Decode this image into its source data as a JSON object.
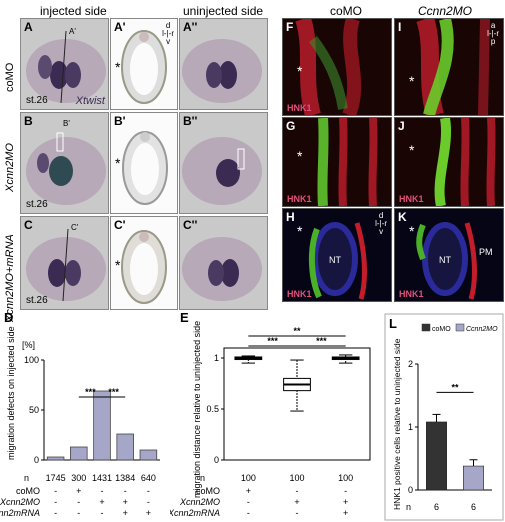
{
  "headers": {
    "injected": "injected side",
    "uninjected": "uninjected side",
    "coMO": "coMO",
    "ccnn2MO": "Ccnn2MO"
  },
  "row_labels": [
    "coMO",
    "Xcnn2MO",
    "Xcnn2MO+mRNA"
  ],
  "panels": {
    "A": "A",
    "A1": "A'",
    "A2": "A''",
    "B": "B",
    "B1": "B'",
    "B2": "B''",
    "C": "C",
    "C1": "C'",
    "C2": "C''",
    "F": "F",
    "G": "G",
    "H": "H",
    "I": "I",
    "J": "J",
    "K": "K"
  },
  "marks": {
    "A1": "A'",
    "B1": "B'",
    "C1": "C'"
  },
  "stage": "st.26",
  "xtwist": "Xtwist",
  "asterisk": "*",
  "hnk1": "HNK1",
  "nt": "NT",
  "pm": "PM",
  "orient_apl": [
    "a",
    "l",
    "r",
    "p"
  ],
  "orient_dlv": [
    "d",
    "l",
    "r",
    "v"
  ],
  "chart_labels": {
    "D": "D",
    "E": "E",
    "L": "L",
    "n": "n"
  },
  "row_names": {
    "coMO": "coMO",
    "xcnn2mo": "Xcnn2MO",
    "xcnn2mrna": "Xcnn2mRNA"
  },
  "chart_data": [
    {
      "type": "bar",
      "panel": "D",
      "title": "",
      "ylabel": "migration defects on injected side",
      "yunit": "[%]",
      "ylim": [
        0,
        100
      ],
      "yticks": [
        0,
        50,
        100
      ],
      "values": [
        3,
        13,
        69,
        26,
        10
      ],
      "n": [
        "1745",
        "300",
        "1431",
        "1384",
        "640"
      ],
      "conditions": {
        "coMO": [
          "-",
          "+",
          "-",
          "-",
          "-"
        ],
        "Xcnn2MO": [
          "-",
          "-",
          "+",
          "+",
          "-"
        ],
        "Xcnn2mRNA": [
          "-",
          "-",
          "-",
          "+",
          "+"
        ]
      },
      "significance": [
        {
          "pair": [
            1,
            2
          ],
          "label": "***"
        },
        {
          "pair": [
            2,
            3
          ],
          "label": "***"
        }
      ]
    },
    {
      "type": "box",
      "panel": "E",
      "ylabel": "migration distance relative to uninjected side",
      "ylim": [
        0,
        1
      ],
      "yticks": [
        "0",
        "0.5",
        "1"
      ],
      "boxes": [
        {
          "q1": 0.985,
          "median": 1.0,
          "q3": 1.01,
          "min": 0.95,
          "max": 1.02
        },
        {
          "q1": 0.68,
          "median": 0.74,
          "q3": 0.8,
          "min": 0.48,
          "max": 0.98
        },
        {
          "q1": 0.985,
          "median": 1.0,
          "q3": 1.01,
          "min": 0.95,
          "max": 1.03
        }
      ],
      "n": [
        "100",
        "100",
        "100"
      ],
      "conditions": {
        "coMO": [
          "+",
          "-",
          "-"
        ],
        "Xcnn2MO": [
          "-",
          "+",
          "+"
        ],
        "Xcnn2mRNA": [
          "-",
          "-",
          "+"
        ]
      },
      "significance": [
        {
          "pair": [
            0,
            1
          ],
          "label": "***"
        },
        {
          "pair": [
            1,
            2
          ],
          "label": "***"
        },
        {
          "pair": [
            0,
            2
          ],
          "label": "**"
        }
      ]
    },
    {
      "type": "bar",
      "panel": "L",
      "ylabel": "HNK1 positive cells relative to uninjected side",
      "ylim": [
        0,
        2
      ],
      "yticks": [
        "0",
        "1",
        "2"
      ],
      "series": [
        {
          "name": "coMO",
          "value": 1.08,
          "err": 0.12,
          "color": "#333333"
        },
        {
          "name": "Ccnn2MO",
          "value": 0.38,
          "err": 0.1,
          "color": "#a6a6c8"
        }
      ],
      "n": [
        "6",
        "6"
      ],
      "significance": [
        {
          "pair": [
            0,
            1
          ],
          "label": "**"
        }
      ]
    }
  ]
}
